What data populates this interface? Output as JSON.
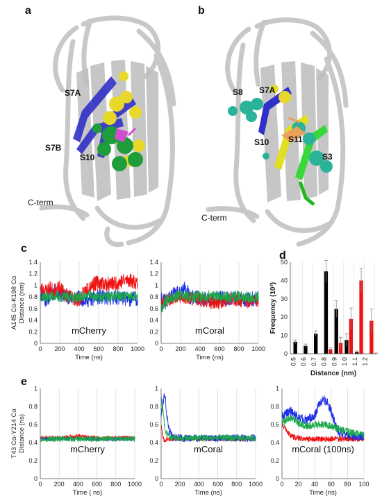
{
  "panel_labels": {
    "a": "a",
    "b": "b",
    "c": "c",
    "d": "d",
    "e": "e"
  },
  "structure_a": {
    "labels": [
      "S7A",
      "S7B",
      "S10"
    ],
    "cterm": "C-term"
  },
  "structure_b": {
    "labels": [
      "S8",
      "S7A",
      "S10",
      "S11",
      "S3"
    ],
    "cterm": "C-term"
  },
  "colors": {
    "red": "#ee1111",
    "blue": "#1b2fe6",
    "green": "#1aa84a",
    "black": "#000000"
  },
  "chart_data": [
    {
      "id": "c1",
      "type": "line",
      "title": "mCherry",
      "ylabel": "A145 Cα-K198 Cα\nDistance (nm)",
      "ylabel_line1": "A145 Cα-K198 Cα",
      "ylabel_line2": "Distance (nm)",
      "xlabel": "Time (ns)",
      "xlim": [
        0,
        1000
      ],
      "ylim": [
        0,
        1.4
      ],
      "xticks": [
        "0",
        "200",
        "400",
        "600",
        "800",
        "1000"
      ],
      "yticks": [
        "0",
        "0.2",
        "0.4",
        "0.6",
        "0.8",
        "1",
        "1.2",
        "1.4"
      ],
      "series": [
        {
          "color": "#1b2fe6",
          "x": [
            0,
            50,
            100,
            150,
            200,
            300,
            400,
            500,
            600,
            700,
            800,
            900,
            1000
          ],
          "y": [
            0.88,
            0.75,
            0.82,
            0.9,
            0.85,
            0.8,
            0.78,
            0.75,
            0.8,
            0.78,
            0.8,
            0.76,
            0.78
          ],
          "noise": 0.13,
          "seed": 11
        },
        {
          "color": "#ee1111",
          "x": [
            0,
            50,
            100,
            150,
            200,
            300,
            400,
            500,
            600,
            700,
            800,
            900,
            1000
          ],
          "y": [
            0.95,
            0.9,
            0.95,
            0.9,
            0.95,
            0.8,
            0.75,
            1.0,
            1.05,
            1.02,
            1.05,
            1.1,
            1.05
          ],
          "noise": 0.13,
          "seed": 23
        },
        {
          "color": "#1aa84a",
          "x": [
            0,
            50,
            100,
            150,
            200,
            300,
            400,
            500,
            600,
            700,
            800,
            900,
            1000
          ],
          "y": [
            0.82,
            0.8,
            0.8,
            0.82,
            0.8,
            0.8,
            0.8,
            0.82,
            0.8,
            0.8,
            0.82,
            0.8,
            0.8
          ],
          "noise": 0.09,
          "seed": 37
        }
      ]
    },
    {
      "id": "c2",
      "type": "line",
      "title": "mCoral",
      "xlabel": "Time (ns)",
      "xlim": [
        0,
        1000
      ],
      "ylim": [
        0,
        1.4
      ],
      "xticks": [
        "0",
        "200",
        "400",
        "600",
        "800",
        "1000"
      ],
      "yticks": [
        "0",
        "0.2",
        "0.4",
        "0.6",
        "0.8",
        "1",
        "1.2",
        "1.4"
      ],
      "series": [
        {
          "color": "#1b2fe6",
          "x": [
            0,
            50,
            100,
            200,
            250,
            300,
            400,
            500,
            600,
            700,
            800,
            900,
            1000
          ],
          "y": [
            0.75,
            0.72,
            0.82,
            0.88,
            0.95,
            0.8,
            0.78,
            0.75,
            0.78,
            0.76,
            0.78,
            0.75,
            0.78
          ],
          "noise": 0.13,
          "seed": 41
        },
        {
          "color": "#ee1111",
          "x": [
            0,
            50,
            100,
            200,
            300,
            400,
            500,
            600,
            700,
            800,
            900,
            1000
          ],
          "y": [
            0.7,
            0.75,
            0.78,
            0.8,
            0.78,
            0.75,
            0.72,
            0.7,
            0.78,
            0.75,
            0.72,
            0.75
          ],
          "noise": 0.12,
          "seed": 53
        },
        {
          "color": "#1aa84a",
          "x": [
            0,
            50,
            100,
            200,
            300,
            400,
            500,
            600,
            700,
            800,
            900,
            1000
          ],
          "y": [
            0.6,
            0.75,
            0.8,
            0.82,
            0.8,
            0.8,
            0.82,
            0.8,
            0.8,
            0.82,
            0.8,
            0.8
          ],
          "noise": 0.1,
          "seed": 67
        }
      ]
    },
    {
      "id": "d",
      "type": "bar",
      "ylabel": "Frequency (10³)",
      "xlabel": "Distance (nm)",
      "ylim": [
        0,
        50
      ],
      "categories": [
        "0.5",
        "0.6",
        "0.7",
        "0.8",
        "0.9",
        "1.0",
        "1.1",
        "1.2"
      ],
      "yticks": [
        "0",
        "10",
        "20",
        "30",
        "40",
        "50"
      ],
      "series": [
        {
          "color": "#000000",
          "values": [
            6.5,
            4.3,
            11.0,
            45.0,
            24.5,
            7.5,
            1.0,
            0
          ],
          "errors": [
            1.0,
            1.0,
            1.5,
            6.0,
            4.5,
            3.5,
            0.5,
            0
          ]
        },
        {
          "color": "#ee1111",
          "values": [
            0,
            0,
            0,
            2.5,
            6.0,
            19.0,
            40.0,
            18.0
          ],
          "errors": [
            0,
            0,
            0,
            1.0,
            3.0,
            6.0,
            6.5,
            6.5
          ]
        }
      ]
    },
    {
      "id": "e1",
      "type": "line",
      "title": "mCherry",
      "ylabel": "T43 Cα-Y214 Cα\nDistance (ns)",
      "ylabel_line1": "T43 Cα-Y214 Cα",
      "ylabel_line2": "Distance (ns)",
      "xlabel": "Time ( ns)",
      "xlim": [
        0,
        1000
      ],
      "ylim": [
        0,
        1
      ],
      "xticks": [
        "0",
        "200",
        "400",
        "600",
        "800",
        "1000"
      ],
      "yticks": [
        "0",
        "0.2",
        "0.4",
        "0.6",
        "0.8",
        "1"
      ],
      "series": [
        {
          "color": "#ee1111",
          "x": [
            0,
            200,
            400,
            600,
            800,
            1000
          ],
          "y": [
            0.45,
            0.45,
            0.47,
            0.45,
            0.45,
            0.45
          ],
          "noise": 0.025,
          "seed": 71
        },
        {
          "color": "#1b2fe6",
          "x": [
            0,
            200,
            400,
            600,
            800,
            1000
          ],
          "y": [
            0.44,
            0.44,
            0.44,
            0.44,
            0.44,
            0.44
          ],
          "noise": 0.02,
          "seed": 83
        },
        {
          "color": "#1aa84a",
          "x": [
            0,
            200,
            400,
            600,
            800,
            1000
          ],
          "y": [
            0.44,
            0.44,
            0.44,
            0.44,
            0.44,
            0.44
          ],
          "noise": 0.03,
          "seed": 97
        }
      ]
    },
    {
      "id": "e2",
      "type": "line",
      "title": "mCoral",
      "xlabel": "Time (ns)",
      "xlim": [
        0,
        1000
      ],
      "ylim": [
        0,
        1
      ],
      "xticks": [
        "0",
        "200",
        "400",
        "600",
        "800",
        "1000"
      ],
      "yticks": [
        "0",
        "0.2",
        "0.4",
        "0.6",
        "0.8",
        "1"
      ],
      "series": [
        {
          "color": "#ee1111",
          "x": [
            0,
            20,
            40,
            60,
            100,
            200,
            400,
            600,
            800,
            1000
          ],
          "y": [
            0.6,
            0.45,
            0.42,
            0.44,
            0.44,
            0.44,
            0.44,
            0.44,
            0.44,
            0.44
          ],
          "noise": 0.025,
          "seed": 101
        },
        {
          "color": "#1b2fe6",
          "x": [
            0,
            20,
            40,
            60,
            80,
            120,
            200,
            400,
            600,
            800,
            1000
          ],
          "y": [
            0.7,
            0.85,
            0.95,
            0.7,
            0.55,
            0.46,
            0.45,
            0.45,
            0.45,
            0.45,
            0.45
          ],
          "noise": 0.04,
          "seed": 113
        },
        {
          "color": "#1aa84a",
          "x": [
            0,
            20,
            40,
            60,
            100,
            200,
            400,
            600,
            800,
            1000
          ],
          "y": [
            0.9,
            0.75,
            0.55,
            0.5,
            0.46,
            0.45,
            0.45,
            0.45,
            0.45,
            0.45
          ],
          "noise": 0.035,
          "seed": 127
        }
      ]
    },
    {
      "id": "e3",
      "type": "line",
      "title": "mCoral (100ns)",
      "xlabel": "Time (ns)",
      "xlim": [
        0,
        100
      ],
      "ylim": [
        0,
        1
      ],
      "xticks": [
        "0",
        "20",
        "40",
        "60",
        "80",
        "100"
      ],
      "yticks": [
        "0",
        "0.2",
        "0.4",
        "0.6",
        "0.8",
        "1"
      ],
      "series": [
        {
          "color": "#ee1111",
          "x": [
            0,
            5,
            10,
            15,
            20,
            30,
            40,
            60,
            80,
            100
          ],
          "y": [
            0.6,
            0.55,
            0.48,
            0.46,
            0.45,
            0.44,
            0.44,
            0.44,
            0.44,
            0.44
          ],
          "noise": 0.03,
          "seed": 131
        },
        {
          "color": "#1b2fe6",
          "x": [
            0,
            5,
            10,
            20,
            30,
            40,
            45,
            50,
            55,
            60,
            65,
            70,
            80,
            90,
            100
          ],
          "y": [
            0.7,
            0.72,
            0.75,
            0.68,
            0.65,
            0.7,
            0.82,
            0.88,
            0.85,
            0.75,
            0.6,
            0.5,
            0.48,
            0.46,
            0.47
          ],
          "noise": 0.05,
          "seed": 149
        },
        {
          "color": "#1aa84a",
          "x": [
            0,
            10,
            20,
            30,
            40,
            50,
            60,
            70,
            80,
            90,
            100
          ],
          "y": [
            0.62,
            0.68,
            0.62,
            0.58,
            0.6,
            0.6,
            0.58,
            0.55,
            0.52,
            0.5,
            0.48
          ],
          "noise": 0.04,
          "seed": 163
        }
      ]
    }
  ]
}
